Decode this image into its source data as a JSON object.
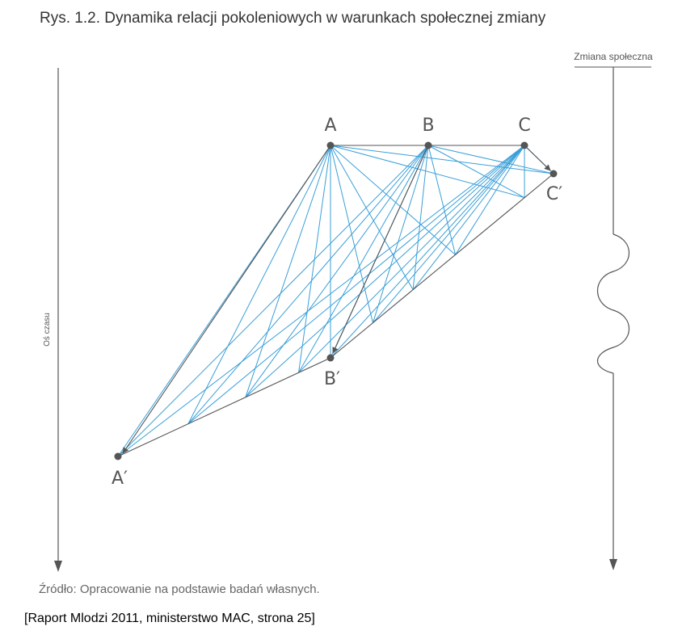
{
  "title": "Rys. 1.2. Dynamika relacji pokoleniowych w warunkach społecznej zmiany",
  "left_axis_label": "Oś czasu",
  "right_axis_label": "Zmiana społeczna",
  "nodes": {
    "A": "A",
    "B": "B",
    "C": "C",
    "A_prime": "A′",
    "B_prime": "B′",
    "C_prime": "C′"
  },
  "source": "Źródło: Opracowanie na podstawie badań własnych.",
  "caption": "[Raport Mlodzi 2011, ministerstwo MAC, strona 25]",
  "colors": {
    "relation_lines": "#3a9fd8",
    "structure_lines": "#555555",
    "text": "#333333"
  }
}
